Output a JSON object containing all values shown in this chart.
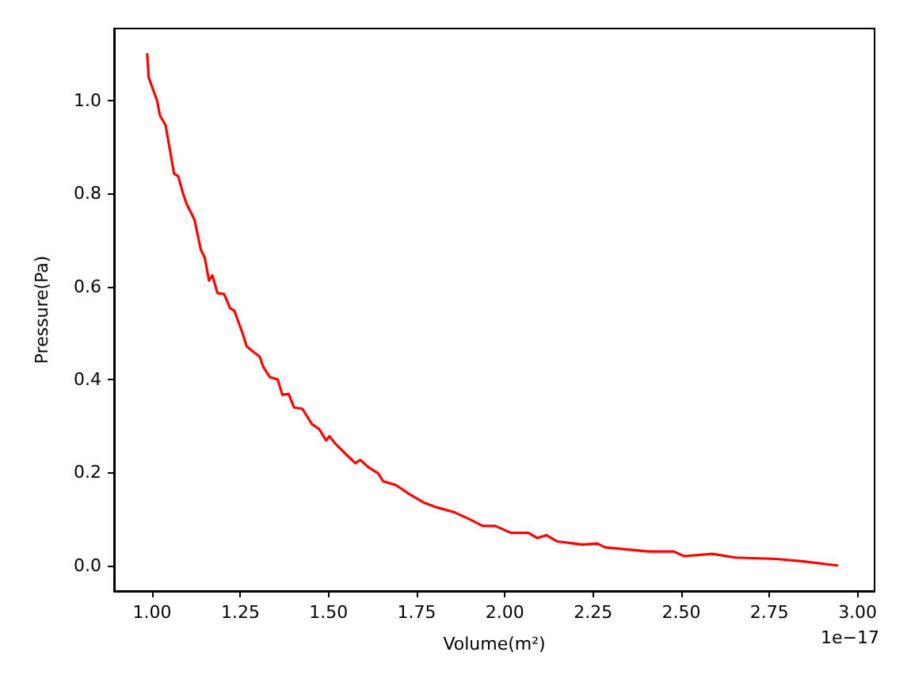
{
  "chart_data": {
    "type": "line",
    "xlabel": "Volume(m²)",
    "ylabel": "Pressure(Pa)",
    "annotations": [
      "1e−17"
    ],
    "xlim": [
      0.892,
      3.048
    ],
    "ylim": [
      -0.055,
      1.155
    ],
    "xticks": [
      {
        "value": 1,
        "label": "1.00"
      },
      1.25,
      {
        "value": 1.5,
        "label": "1.50"
      },
      1.75,
      {
        "value": 2,
        "label": "2.00"
      },
      2.25,
      {
        "value": 2.5,
        "label": "2.50"
      },
      2.75,
      {
        "value": 3,
        "label": "3.00"
      }
    ],
    "yticks": [
      {
        "value": 0,
        "label": "0.0"
      },
      0.2,
      0.4,
      0.6,
      0.8,
      {
        "value": 1,
        "label": "1.0"
      }
    ],
    "grid": false,
    "marker": "none",
    "line_style": "solid",
    "series": [
      {
        "color": "#ff0000",
        "x": [
          0.986,
          0.99,
          1.014,
          1.022,
          1.038,
          1.062,
          1.074,
          1.088,
          1.098,
          1.12,
          1.138,
          1.149,
          1.161,
          1.171,
          1.185,
          1.204,
          1.221,
          1.233,
          1.257,
          1.268,
          1.286,
          1.305,
          1.315,
          1.334,
          1.356,
          1.369,
          1.387,
          1.402,
          1.426,
          1.453,
          1.474,
          1.493,
          1.503,
          1.518,
          1.554,
          1.576,
          1.59,
          1.612,
          1.641,
          1.655,
          1.691,
          1.728,
          1.771,
          1.807,
          1.858,
          1.901,
          1.937,
          1.973,
          2.017,
          2.067,
          2.092,
          2.118,
          2.147,
          2.219,
          2.262,
          2.284,
          2.407,
          2.479,
          2.508,
          2.588,
          2.653,
          2.769,
          2.841,
          2.942
        ],
        "values": [
          1.1,
          1.05,
          1.0,
          0.968,
          0.947,
          0.843,
          0.837,
          0.799,
          0.777,
          0.744,
          0.679,
          0.662,
          0.613,
          0.624,
          0.586,
          0.584,
          0.553,
          0.548,
          0.498,
          0.471,
          0.46,
          0.449,
          0.427,
          0.405,
          0.4,
          0.367,
          0.369,
          0.34,
          0.337,
          0.304,
          0.293,
          0.269,
          0.278,
          0.263,
          0.236,
          0.22,
          0.227,
          0.212,
          0.198,
          0.181,
          0.173,
          0.154,
          0.135,
          0.125,
          0.114,
          0.099,
          0.085,
          0.085,
          0.07,
          0.07,
          0.059,
          0.065,
          0.052,
          0.045,
          0.047,
          0.039,
          0.03,
          0.03,
          0.02,
          0.025,
          0.017,
          0.014,
          0.009,
          0.0
        ]
      }
    ]
  }
}
